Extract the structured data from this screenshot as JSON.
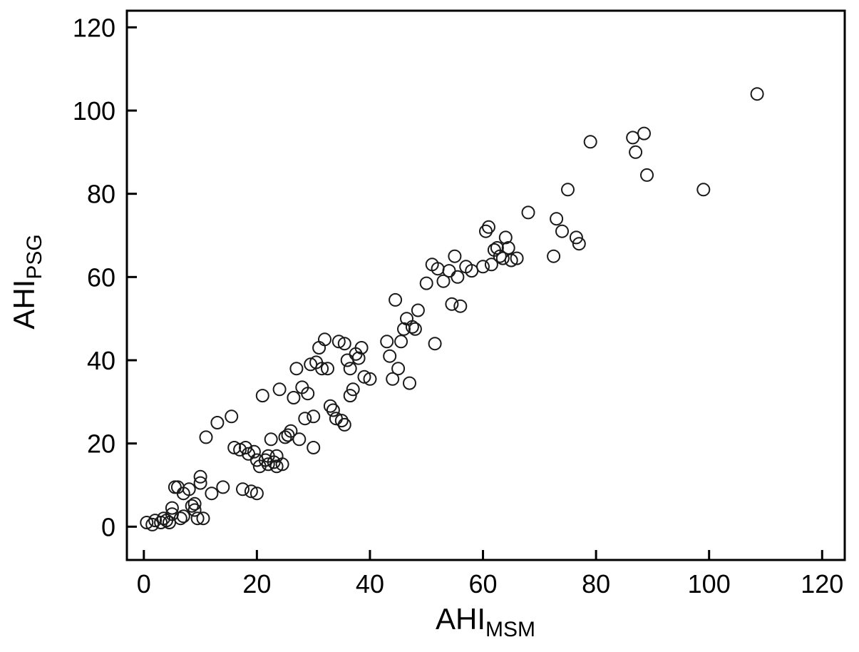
{
  "figure": {
    "background": "#ffffff",
    "axis_color": "#000000",
    "marker": {
      "shape": "open-circle",
      "radius": 8.5,
      "stroke": "#1a1a1a",
      "stroke_width": 2,
      "fill": "none"
    }
  },
  "chart_data": {
    "type": "scatter",
    "title": "",
    "xlabel": {
      "main": "AHI",
      "sub": "MSM"
    },
    "ylabel": {
      "main": "AHI",
      "sub": "PSG"
    },
    "xlim": [
      0,
      120
    ],
    "ylim": [
      0,
      120
    ],
    "xticks": [
      0,
      20,
      40,
      60,
      80,
      100,
      120
    ],
    "yticks": [
      0,
      20,
      40,
      60,
      80,
      100,
      120
    ],
    "grid": false,
    "legend": null,
    "points": [
      [
        0.5,
        1
      ],
      [
        1.5,
        0.5
      ],
      [
        2,
        1.5
      ],
      [
        3,
        1
      ],
      [
        3.5,
        2
      ],
      [
        4,
        1.5
      ],
      [
        4.5,
        1
      ],
      [
        5,
        3
      ],
      [
        5,
        4.5
      ],
      [
        5.5,
        9.5
      ],
      [
        6,
        9.5
      ],
      [
        6.5,
        2
      ],
      [
        7,
        2.5
      ],
      [
        7,
        8
      ],
      [
        8,
        9
      ],
      [
        8.5,
        5
      ],
      [
        9,
        5.5
      ],
      [
        9,
        4
      ],
      [
        9.5,
        2
      ],
      [
        10,
        10.5
      ],
      [
        10,
        12
      ],
      [
        10.5,
        2
      ],
      [
        11,
        21.5
      ],
      [
        12,
        8
      ],
      [
        13,
        25
      ],
      [
        14,
        9.5
      ],
      [
        15.5,
        26.5
      ],
      [
        16,
        19
      ],
      [
        17,
        18.5
      ],
      [
        17.5,
        9
      ],
      [
        18,
        19
      ],
      [
        18.5,
        17.5
      ],
      [
        19,
        8.5
      ],
      [
        19.5,
        18
      ],
      [
        20,
        8
      ],
      [
        20,
        16
      ],
      [
        20.5,
        14.5
      ],
      [
        21,
        31.5
      ],
      [
        21.5,
        16
      ],
      [
        22,
        15
      ],
      [
        22,
        17
      ],
      [
        22.5,
        21
      ],
      [
        23,
        15.5
      ],
      [
        23.5,
        14.5
      ],
      [
        23.5,
        17
      ],
      [
        24,
        33
      ],
      [
        24.5,
        15
      ],
      [
        25,
        21.5
      ],
      [
        25.5,
        22
      ],
      [
        26,
        23
      ],
      [
        26.5,
        31
      ],
      [
        27,
        38
      ],
      [
        27.5,
        21
      ],
      [
        28,
        33.5
      ],
      [
        28.5,
        26
      ],
      [
        29,
        32
      ],
      [
        29.5,
        39
      ],
      [
        30,
        19
      ],
      [
        30,
        26.5
      ],
      [
        30.5,
        39.5
      ],
      [
        31,
        43
      ],
      [
        31.5,
        38
      ],
      [
        32,
        45
      ],
      [
        32.5,
        38
      ],
      [
        33,
        29
      ],
      [
        33.5,
        28
      ],
      [
        34,
        26
      ],
      [
        34.5,
        44.5
      ],
      [
        35,
        25.5
      ],
      [
        35.5,
        24.5
      ],
      [
        35.5,
        44
      ],
      [
        36,
        40
      ],
      [
        36.5,
        38
      ],
      [
        36.5,
        31.5
      ],
      [
        37,
        33
      ],
      [
        37.5,
        41.5
      ],
      [
        38,
        40.5
      ],
      [
        38.5,
        43
      ],
      [
        39,
        36
      ],
      [
        40,
        35.5
      ],
      [
        43,
        44.5
      ],
      [
        43.5,
        41
      ],
      [
        44,
        35.5
      ],
      [
        44.5,
        54.5
      ],
      [
        45,
        38
      ],
      [
        45.5,
        44.5
      ],
      [
        46,
        47.5
      ],
      [
        46.5,
        50
      ],
      [
        47,
        34.5
      ],
      [
        47.5,
        48
      ],
      [
        48,
        47.5
      ],
      [
        48.5,
        52
      ],
      [
        50,
        58.5
      ],
      [
        51,
        63
      ],
      [
        51.5,
        44
      ],
      [
        52,
        62
      ],
      [
        53,
        59
      ],
      [
        54,
        61.5
      ],
      [
        54.5,
        53.5
      ],
      [
        55,
        65
      ],
      [
        55.5,
        60
      ],
      [
        56,
        53
      ],
      [
        57,
        62.5
      ],
      [
        58,
        61.5
      ],
      [
        60,
        62.5
      ],
      [
        60.5,
        71
      ],
      [
        61,
        72
      ],
      [
        61.5,
        63
      ],
      [
        62,
        66.5
      ],
      [
        62.5,
        67
      ],
      [
        63,
        65
      ],
      [
        63.5,
        64.5
      ],
      [
        64,
        69.5
      ],
      [
        64.5,
        67
      ],
      [
        65,
        64
      ],
      [
        66,
        64.5
      ],
      [
        68,
        75.5
      ],
      [
        72.5,
        65
      ],
      [
        73,
        74
      ],
      [
        74,
        71
      ],
      [
        75,
        81
      ],
      [
        76.5,
        69.5
      ],
      [
        77,
        68
      ],
      [
        79,
        92.5
      ],
      [
        86.5,
        93.5
      ],
      [
        87,
        90
      ],
      [
        88.5,
        94.5
      ],
      [
        89,
        84.5
      ],
      [
        99,
        81
      ],
      [
        108.5,
        104
      ]
    ]
  }
}
